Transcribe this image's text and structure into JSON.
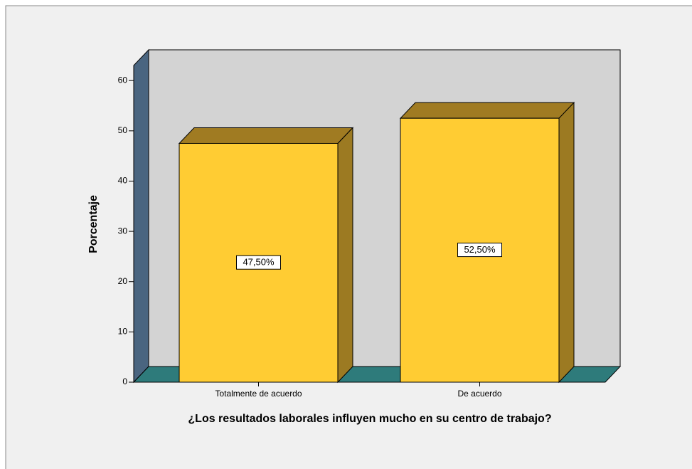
{
  "chart_data": {
    "type": "bar3d",
    "categories": [
      "Totalmente de acuerdo",
      "De acuerdo"
    ],
    "values": [
      47.5,
      52.5
    ],
    "value_labels": [
      "47,50%",
      "52,50%"
    ],
    "color": "#ffcc33",
    "ylabel": "Porcentaje",
    "xlabel": "¿Los resultados laborales influyen mucho en su centro de trabajo?",
    "ylim": [
      0,
      63
    ],
    "yticks": [
      0,
      10,
      20,
      30,
      40,
      50,
      60
    ]
  }
}
